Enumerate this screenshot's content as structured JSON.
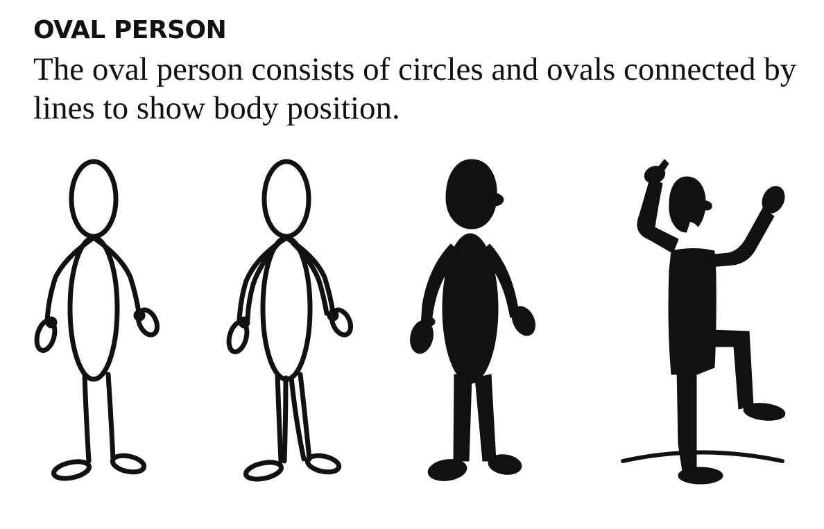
{
  "heading": "OVAL PERSON",
  "body_text": "The oval person consists of circles and ovals connected by lines to show body position.",
  "figures": [
    {
      "icon": "oval-person-outline-icon"
    },
    {
      "icon": "oval-person-outline-double-line-icon"
    },
    {
      "icon": "oval-person-silhouette-icon"
    },
    {
      "icon": "oval-person-silhouette-action-pose-icon"
    }
  ],
  "colors": {
    "ink": "#111111",
    "background": "#ffffff"
  }
}
